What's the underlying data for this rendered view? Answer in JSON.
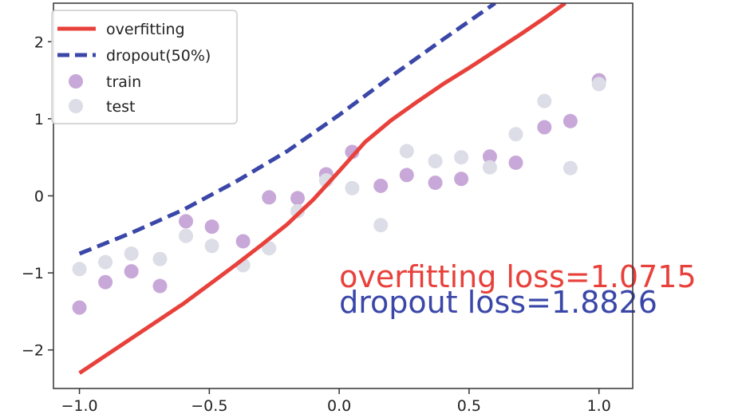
{
  "chart_data": {
    "type": "scatter",
    "title": "",
    "xlabel": "",
    "ylabel": "",
    "xlim": [
      -1.1,
      1.13
    ],
    "ylim": [
      -2.5,
      2.5
    ],
    "xticks": [
      -1.0,
      -0.5,
      0.0,
      0.5,
      1.0
    ],
    "xtick_labels": [
      "−1.0",
      "−0.5",
      "0.0",
      "0.5",
      "1.0"
    ],
    "yticks": [
      -2,
      -1,
      0,
      1,
      2
    ],
    "ytick_labels": [
      "−2",
      "−1",
      "0",
      "1",
      "2"
    ],
    "grid": false,
    "legend_position": "top-left",
    "series": [
      {
        "name": "overfitting",
        "kind": "line",
        "style": "solid",
        "color": "#e8413b",
        "x": [
          -1.0,
          -0.8,
          -0.6,
          -0.5,
          -0.4,
          -0.3,
          -0.2,
          -0.1,
          0.0,
          0.1,
          0.2,
          0.3,
          0.4,
          0.5,
          0.6,
          0.7,
          0.8,
          0.87
        ],
        "y": [
          -2.3,
          -1.85,
          -1.4,
          -1.15,
          -0.9,
          -0.64,
          -0.37,
          -0.05,
          0.32,
          0.7,
          0.98,
          1.22,
          1.45,
          1.66,
          1.88,
          2.1,
          2.33,
          2.5
        ]
      },
      {
        "name": "dropout(50%)",
        "kind": "line",
        "style": "dashed",
        "color": "#3a47a8",
        "x": [
          -1.0,
          -0.8,
          -0.6,
          -0.4,
          -0.2,
          0.0,
          0.2,
          0.4,
          0.6
        ],
        "y": [
          -0.75,
          -0.48,
          -0.18,
          0.18,
          0.58,
          1.05,
          1.55,
          2.03,
          2.5
        ]
      },
      {
        "name": "train",
        "kind": "scatter",
        "color": "#c8a8d8",
        "x": [
          -1.0,
          -0.9,
          -0.8,
          -0.69,
          -0.59,
          -0.49,
          -0.37,
          -0.27,
          -0.16,
          -0.05,
          0.05,
          0.16,
          0.26,
          0.37,
          0.47,
          0.58,
          0.68,
          0.79,
          0.89,
          1.0
        ],
        "y": [
          -1.45,
          -1.12,
          -0.98,
          -1.17,
          -0.33,
          -0.4,
          -0.59,
          -0.02,
          -0.03,
          0.28,
          0.57,
          0.13,
          0.27,
          0.17,
          0.22,
          0.51,
          0.43,
          0.89,
          0.97,
          1.5
        ]
      },
      {
        "name": "test",
        "kind": "scatter",
        "color": "#dcdde6",
        "x": [
          -1.0,
          -0.9,
          -0.8,
          -0.69,
          -0.59,
          -0.49,
          -0.37,
          -0.27,
          -0.16,
          -0.05,
          0.05,
          0.16,
          0.26,
          0.37,
          0.47,
          0.58,
          0.68,
          0.79,
          0.89,
          1.0
        ],
        "y": [
          -0.95,
          -0.86,
          -0.75,
          -0.82,
          -0.52,
          -0.65,
          -0.9,
          -0.68,
          -0.2,
          0.2,
          0.1,
          -0.38,
          0.58,
          0.45,
          0.5,
          0.37,
          0.8,
          1.23,
          0.36,
          1.45
        ]
      }
    ],
    "annotations": [
      {
        "text": "overfitting loss=1.0715",
        "color": "#e8413b",
        "x": 0.0,
        "y": -1.05
      },
      {
        "text": "dropout loss=1.8826",
        "color": "#3a47a8",
        "x": 0.0,
        "y": -1.38
      }
    ]
  }
}
